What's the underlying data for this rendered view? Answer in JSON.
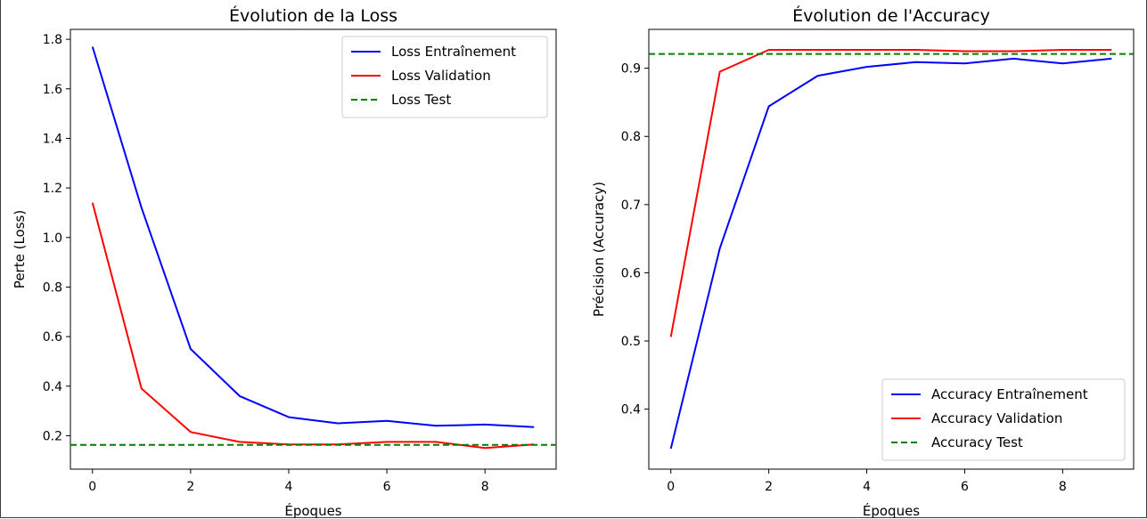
{
  "chart_data": [
    {
      "type": "line",
      "title": "Évolution de la Loss",
      "xlabel": "Époques",
      "ylabel": "Perte (Loss)",
      "xlim": [
        -0.45,
        9.45
      ],
      "ylim": [
        0.065,
        1.84
      ],
      "xticks": [
        0,
        2,
        4,
        6,
        8
      ],
      "yticks": [
        0.2,
        0.4,
        0.6,
        0.8,
        1.0,
        1.2,
        1.4,
        1.6,
        1.8
      ],
      "ytick_labels": [
        "0.2",
        "0.4",
        "0.6",
        "0.8",
        "1.0",
        "1.2",
        "1.4",
        "1.6",
        "1.8"
      ],
      "legend_position": "top-right",
      "grid": false,
      "x": [
        0,
        1,
        2,
        3,
        4,
        5,
        6,
        7,
        8,
        9
      ],
      "series": [
        {
          "name": "Loss Entraînement",
          "color": "#0000ff",
          "style": "solid",
          "values": [
            1.77,
            1.12,
            0.55,
            0.36,
            0.275,
            0.25,
            0.26,
            0.24,
            0.245,
            0.235
          ]
        },
        {
          "name": "Loss Validation",
          "color": "#ff0000",
          "style": "solid",
          "values": [
            1.14,
            0.39,
            0.215,
            0.175,
            0.165,
            0.165,
            0.175,
            0.175,
            0.15,
            0.165
          ]
        },
        {
          "name": "Loss Test",
          "color": "#008000",
          "style": "dashed",
          "constant": 0.163
        }
      ]
    },
    {
      "type": "line",
      "title": "Évolution de l'Accuracy",
      "xlabel": "Époques",
      "ylabel": "Précision (Accuracy)",
      "xlim": [
        -0.45,
        9.45
      ],
      "ylim": [
        0.312,
        0.957
      ],
      "xticks": [
        0,
        2,
        4,
        6,
        8
      ],
      "yticks": [
        0.4,
        0.5,
        0.6,
        0.7,
        0.8,
        0.9
      ],
      "ytick_labels": [
        "0.4",
        "0.5",
        "0.6",
        "0.7",
        "0.8",
        "0.9"
      ],
      "legend_position": "bottom-right",
      "grid": false,
      "x": [
        0,
        1,
        2,
        3,
        4,
        5,
        6,
        7,
        8,
        9
      ],
      "series": [
        {
          "name": "Accuracy Entraînement",
          "color": "#0000ff",
          "style": "solid",
          "values": [
            0.342,
            0.636,
            0.844,
            0.889,
            0.902,
            0.909,
            0.907,
            0.914,
            0.907,
            0.914
          ]
        },
        {
          "name": "Accuracy Validation",
          "color": "#ff0000",
          "style": "solid",
          "values": [
            0.506,
            0.895,
            0.927,
            0.927,
            0.927,
            0.927,
            0.925,
            0.925,
            0.927,
            0.927
          ]
        },
        {
          "name": "Accuracy Test",
          "color": "#008000",
          "style": "dashed",
          "constant": 0.921
        }
      ]
    }
  ]
}
